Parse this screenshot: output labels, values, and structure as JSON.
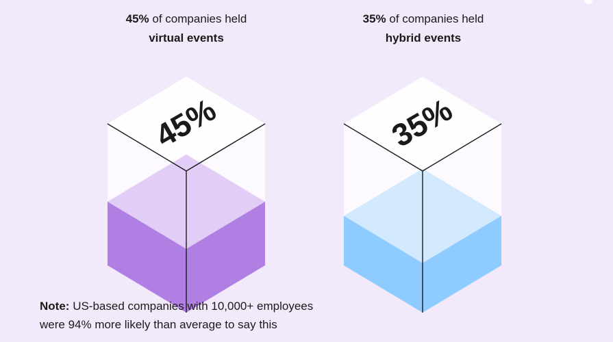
{
  "chart_data": [
    {
      "type": "bar",
      "name": "virtual",
      "value": 45,
      "label": "45%",
      "caption_pct": "45%",
      "caption_rest": "of companies held",
      "caption_bold": "virtual events",
      "fill_color": "#b07fe3",
      "top_color": "#e1cdf5"
    },
    {
      "type": "bar",
      "name": "hybrid",
      "value": 35,
      "label": "35%",
      "caption_pct": "35%",
      "caption_rest": "of companies held",
      "caption_bold": "hybrid events",
      "fill_color": "#8ecbff",
      "top_color": "#d3e9fe"
    }
  ],
  "note": {
    "label": "Note:",
    "line1": "US-based companies with 10,000+ employees",
    "line2": "were 94% more likely than average to say this"
  }
}
